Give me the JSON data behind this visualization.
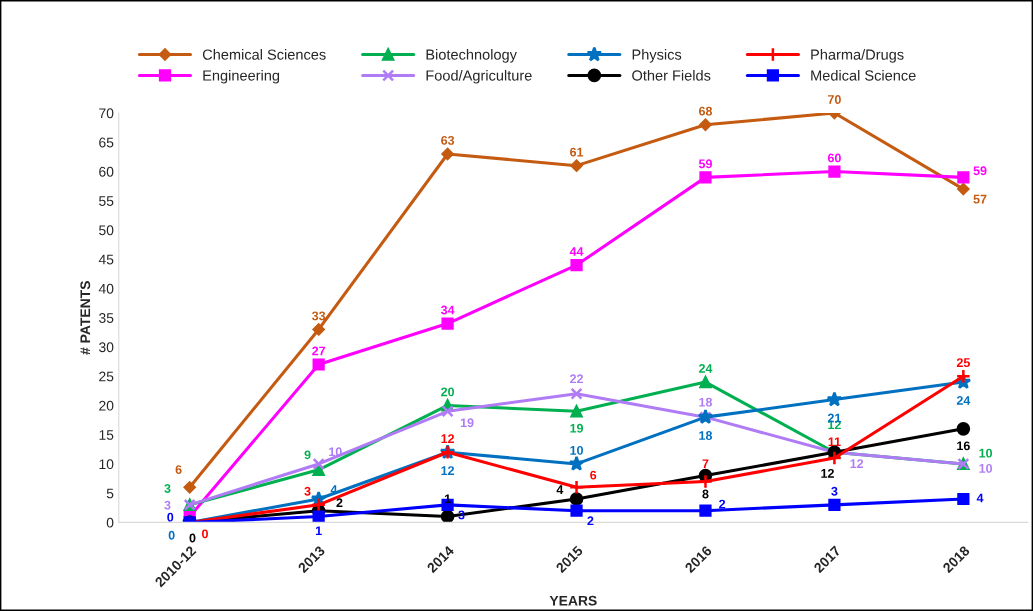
{
  "chart_data": {
    "type": "line",
    "xlabel": "YEARS",
    "ylabel": "# PATENTS",
    "categories": [
      "2010-12",
      "2013",
      "2014",
      "2015",
      "2016",
      "2017",
      "2018"
    ],
    "ylim": [
      0,
      70
    ],
    "yticks": [
      0,
      5,
      10,
      15,
      20,
      25,
      30,
      35,
      40,
      45,
      50,
      55,
      60,
      65,
      70
    ],
    "grid": false,
    "legend": "top",
    "series": [
      {
        "name": "Chemical Sciences",
        "color": "#c55a11",
        "marker": "diamond",
        "values": [
          6,
          33,
          63,
          61,
          68,
          70,
          57
        ],
        "value_labels": [
          "6",
          "33",
          "63",
          "61",
          "68",
          "70",
          "57"
        ]
      },
      {
        "name": "Engineering",
        "color": "#ff00ff",
        "marker": "square",
        "values": [
          1,
          27,
          34,
          44,
          59,
          60,
          59
        ],
        "value_labels": [
          null,
          "27",
          "34",
          "44",
          "59",
          "60",
          "59"
        ]
      },
      {
        "name": "Biotechnology",
        "color": "#00b050",
        "marker": "triangle",
        "values": [
          3,
          9,
          20,
          19,
          24,
          12,
          10
        ],
        "value_labels": [
          "3",
          "9",
          "20",
          "19",
          "24",
          "12",
          "10"
        ]
      },
      {
        "name": "Food/Agriculture",
        "color": "#b07cf5",
        "marker": "cross",
        "values": [
          3,
          10,
          19,
          22,
          18,
          12,
          10
        ],
        "value_labels": [
          "3",
          "10",
          "19",
          "22",
          "18",
          "12",
          "10"
        ]
      },
      {
        "name": "Physics",
        "color": "#0070c0",
        "marker": "star",
        "values": [
          0,
          4,
          12,
          10,
          18,
          21,
          24
        ],
        "value_labels": [
          "0",
          "4",
          "12",
          "10",
          "18",
          "21",
          "24"
        ]
      },
      {
        "name": "Other Fields",
        "color": "#000000",
        "marker": "circle",
        "values": [
          0,
          2,
          1,
          4,
          8,
          12,
          16
        ],
        "value_labels": [
          "0",
          "2",
          "1",
          "4",
          "8",
          "12",
          "16"
        ]
      },
      {
        "name": "Pharma/Drugs",
        "color": "#ff0000",
        "marker": "plus",
        "values": [
          0,
          3,
          12,
          6,
          7,
          11,
          25
        ],
        "value_labels": [
          "0",
          "3",
          "12",
          "6",
          "7",
          "11",
          "25"
        ]
      },
      {
        "name": "Medical Science",
        "color": "#0000ff",
        "marker": "square",
        "values": [
          0,
          1,
          3,
          2,
          2,
          3,
          4
        ],
        "value_labels": [
          "0",
          "1",
          "3",
          "2",
          "2",
          "3",
          "4"
        ]
      }
    ]
  }
}
